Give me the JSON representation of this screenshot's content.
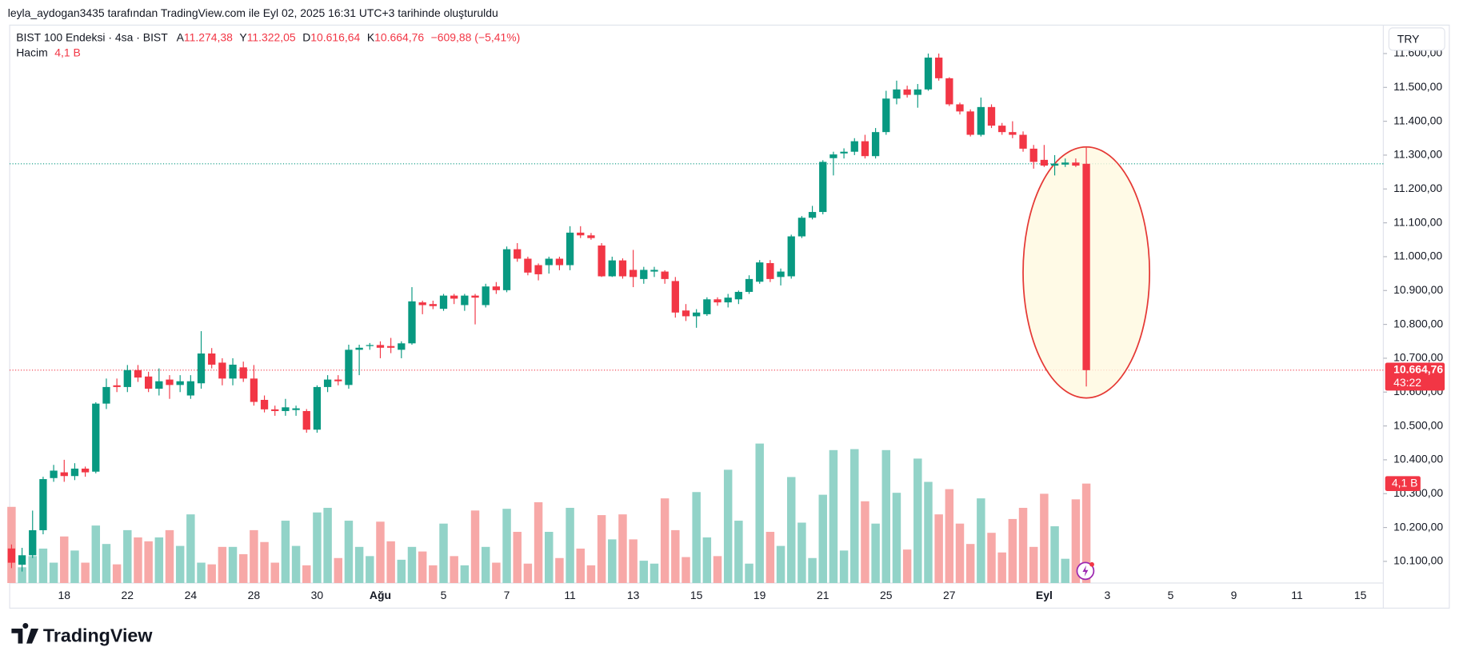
{
  "caption": "leyla_aydogan3435 tarafından TradingView.com ile Eyl 02, 2025 16:31 UTC+3 tarihinde oluşturuldu",
  "brand": "TradingView",
  "chart_data": {
    "type": "candlestick",
    "legend": {
      "symbol": "BIST 100 Endeksi · 4sa · BIST",
      "fields": [
        [
          "A",
          "11.274,38"
        ],
        [
          "Y",
          "11.322,05"
        ],
        [
          "D",
          "10.616,64"
        ],
        [
          "K",
          "10.664,76"
        ]
      ],
      "change": "−609,88 (−5,41%)",
      "volume_name": "Hacim",
      "volume": "4,1 B"
    },
    "currency": "TRY",
    "countdown": "43:22",
    "up_color": "#089981",
    "down_color": "#f23645",
    "volume_up_color": "#92d3c8",
    "volume_down_color": "#f7a8a7",
    "ylim": [
      10036,
      11684
    ],
    "yticks": [
      {
        "value": 10100,
        "label": "10.100,00"
      },
      {
        "value": 10200,
        "label": "10.200,00"
      },
      {
        "value": 10300,
        "label": "10.300,00"
      },
      {
        "value": 10400,
        "label": "10.400,00"
      },
      {
        "value": 10500,
        "label": "10.500,00"
      },
      {
        "value": 10600,
        "label": "10.600,00"
      },
      {
        "value": 10700,
        "label": "10.700,00"
      },
      {
        "value": 10800,
        "label": "10.800,00"
      },
      {
        "value": 10900,
        "label": "10.900,00"
      },
      {
        "value": 11000,
        "label": "11.000,00"
      },
      {
        "value": 11100,
        "label": "11.100,00"
      },
      {
        "value": 11200,
        "label": "11.200,00"
      },
      {
        "value": 11300,
        "label": "11.300,00"
      },
      {
        "value": 11400,
        "label": "11.400,00"
      },
      {
        "value": 11500,
        "label": "11.500,00"
      },
      {
        "value": 11600,
        "label": "11.600,00"
      }
    ],
    "grid": false,
    "categories": [
      null,
      null,
      null,
      null,
      null,
      "18",
      null,
      null,
      null,
      null,
      null,
      "22",
      null,
      null,
      null,
      null,
      null,
      "24",
      null,
      null,
      null,
      null,
      null,
      "28",
      null,
      null,
      null,
      null,
      null,
      "30",
      null,
      null,
      null,
      null,
      null,
      "Ağu",
      null,
      null,
      null,
      null,
      null,
      "5",
      null,
      null,
      null,
      null,
      null,
      "7",
      null,
      null,
      null,
      null,
      null,
      "11",
      null,
      null,
      null,
      null,
      null,
      "13",
      null,
      null,
      null,
      null,
      null,
      "15",
      null,
      null,
      null,
      null,
      null,
      "19",
      null,
      null,
      null,
      null,
      null,
      "21",
      null,
      null,
      null,
      null,
      null,
      "25",
      null,
      null,
      null,
      null,
      null,
      "27",
      null,
      null,
      null,
      null,
      null,
      null,
      null,
      null,
      "Eyl",
      null,
      null,
      null,
      null,
      null,
      "3",
      null,
      null,
      null,
      null,
      null,
      "5",
      null,
      null,
      null,
      null,
      null,
      "9",
      null,
      null,
      null,
      null,
      null,
      "11",
      null,
      null,
      null,
      null,
      null,
      "15",
      null,
      null
    ],
    "open": [
      10138,
      10090,
      10118,
      10192,
      10346,
      10363,
      10352,
      10374,
      10365,
      10566,
      10620,
      10615,
      10665,
      10646,
      10610,
      10637,
      10621,
      10590,
      10626,
      10714,
      10687,
      10640,
      10673,
      10640,
      10577,
      10549,
      10544,
      10547,
      10544,
      10489,
      10615,
      10637,
      10621,
      10725,
      10736,
      10739,
      10736,
      10725,
      10744,
      10865,
      10860,
      10846,
      10885,
      10857,
      10885,
      10857,
      10912,
      10901,
      11022,
      10994,
      10975,
      10975,
      10994,
      10975,
      11071,
      11063,
      11033,
      10942,
      10989,
      10961,
      10934,
      10956,
      10956,
      10928,
      10841,
      10824,
      10830,
      10874,
      10865,
      10874,
      10896,
      10926,
      10981,
      10940,
      10942,
      11060,
      11115,
      11132,
      11291,
      11305,
      11310,
      11341,
      11297,
      11368,
      11467,
      11494,
      11478,
      11494,
      11588,
      11527,
      11450,
      11429,
      11360,
      11442,
      11387,
      11368,
      11360,
      11319,
      11286,
      11269,
      11272,
      11278,
      11274.38,
      null,
      null,
      null,
      null,
      null,
      null,
      null,
      null,
      null,
      null,
      null,
      null,
      null,
      null,
      null,
      null,
      null,
      null,
      null,
      null,
      null,
      null,
      null,
      null,
      null,
      null,
      null,
      null
    ],
    "high": [
      10150,
      10140,
      10250,
      10350,
      10385,
      10400,
      10390,
      10380,
      10570,
      10640,
      10640,
      10680,
      10680,
      10660,
      10670,
      10650,
      10650,
      10650,
      10780,
      10730,
      10700,
      10700,
      10690,
      10680,
      10590,
      10560,
      10580,
      10560,
      10550,
      10620,
      10650,
      10650,
      10740,
      10740,
      10745,
      10750,
      10760,
      10750,
      10910,
      10870,
      10870,
      10890,
      10890,
      10890,
      10890,
      10920,
      10925,
      11030,
      11040,
      11000,
      10980,
      11000,
      11000,
      11090,
      11090,
      11070,
      11040,
      11000,
      10995,
      11020,
      10970,
      10970,
      10960,
      10940,
      10860,
      10845,
      10880,
      10880,
      10890,
      10900,
      10945,
      10990,
      10990,
      10965,
      11065,
      11120,
      11150,
      11285,
      11310,
      11320,
      11350,
      11360,
      11380,
      11490,
      11520,
      11505,
      11510,
      11600,
      11600,
      11530,
      11455,
      11435,
      11470,
      11450,
      11395,
      11400,
      11370,
      11330,
      11330,
      11300,
      11290,
      11290,
      11322.05,
      null,
      null,
      null,
      null,
      null,
      null,
      null,
      null,
      null,
      null,
      null,
      null,
      null,
      null,
      null,
      null,
      null,
      null,
      null,
      null,
      null,
      null,
      null,
      null,
      null,
      null,
      null,
      null
    ],
    "low": [
      10080,
      10070,
      10110,
      10180,
      10335,
      10335,
      10340,
      10350,
      10360,
      10550,
      10600,
      10600,
      10630,
      10600,
      10590,
      10580,
      10600,
      10580,
      10610,
      10670,
      10620,
      10620,
      10630,
      10560,
      10540,
      10530,
      10530,
      10530,
      10480,
      10480,
      10600,
      10620,
      10610,
      10650,
      10725,
      10700,
      10715,
      10700,
      10740,
      10830,
      10845,
      10840,
      10860,
      10840,
      10800,
      10850,
      10890,
      10895,
      10985,
      10945,
      10930,
      10950,
      10960,
      10960,
      11055,
      11050,
      10940,
      10940,
      10935,
      10910,
      10920,
      10940,
      10920,
      10820,
      10810,
      10790,
      10825,
      10855,
      10850,
      10860,
      10890,
      10920,
      10925,
      10915,
      10935,
      11055,
      11110,
      11125,
      11240,
      11290,
      11300,
      11290,
      11290,
      11360,
      11450,
      11470,
      11440,
      11490,
      11520,
      11445,
      11420,
      11355,
      11355,
      11380,
      11360,
      11350,
      11310,
      11260,
      11265,
      11240,
      11265,
      11265,
      10616.64,
      null,
      null,
      null,
      null,
      null,
      null,
      null,
      null,
      null,
      null,
      null,
      null,
      null,
      null,
      null,
      null,
      null,
      null,
      null,
      null,
      null,
      null,
      null,
      null,
      null,
      null,
      null,
      null
    ],
    "close": [
      10096,
      10118,
      10192,
      10343,
      10368,
      10352,
      10374,
      10363,
      10566,
      10615,
      10615,
      10665,
      10643,
      10610,
      10632,
      10621,
      10632,
      10632,
      10714,
      10681,
      10640,
      10681,
      10640,
      10571,
      10549,
      10544,
      10555,
      10552,
      10489,
      10615,
      10637,
      10632,
      10725,
      10731,
      10739,
      10731,
      10731,
      10744,
      10868,
      10857,
      10854,
      10885,
      10876,
      10885,
      10879,
      10912,
      10901,
      11022,
      10994,
      10953,
      10948,
      10994,
      10975,
      11071,
      11063,
      11055,
      10942,
      10989,
      10942,
      10940,
      10961,
      10961,
      10934,
      10835,
      10824,
      10835,
      10874,
      10865,
      10879,
      10896,
      10934,
      10983,
      10934,
      10956,
      11060,
      11115,
      11132,
      11280,
      11302,
      11310,
      11341,
      11297,
      11368,
      11467,
      11494,
      11478,
      11494,
      11588,
      11527,
      11450,
      11429,
      11360,
      11442,
      11387,
      11368,
      11360,
      11319,
      11280,
      11269,
      11275,
      11278,
      11269,
      10664.76,
      null,
      null,
      null,
      null,
      null,
      null,
      null,
      null,
      null,
      null,
      null,
      null,
      null,
      null,
      null,
      null,
      null,
      null,
      null,
      null,
      null,
      null,
      null,
      null,
      null,
      null,
      null,
      null
    ],
    "volume": [
      3.14,
      0.65,
      1.11,
      1.42,
      0.84,
      1.92,
      1.34,
      0.84,
      2.37,
      1.61,
      0.77,
      2.18,
      1.88,
      1.72,
      1.88,
      2.18,
      1.53,
      2.83,
      0.84,
      0.77,
      1.49,
      1.49,
      1.19,
      2.18,
      1.69,
      0.84,
      2.57,
      1.53,
      0.73,
      2.91,
      3.1,
      1.03,
      2.57,
      1.49,
      1.11,
      2.53,
      1.72,
      0.96,
      1.49,
      1.3,
      0.73,
      2.45,
      1.11,
      0.73,
      2.99,
      1.49,
      0.84,
      3.06,
      2.11,
      0.8,
      3.33,
      2.11,
      1.03,
      3.1,
      1.42,
      0.73,
      2.8,
      1.8,
      2.83,
      1.8,
      0.92,
      0.8,
      3.49,
      2.18,
      1.07,
      3.75,
      1.88,
      1.11,
      4.67,
      2.57,
      0.8,
      5.75,
      2.11,
      1.53,
      4.37,
      2.49,
      1.03,
      3.64,
      5.48,
      1.34,
      5.52,
      3.37,
      2.45,
      5.48,
      3.72,
      1.38,
      5.13,
      4.17,
      2.83,
      3.87,
      2.45,
      1.61,
      3.49,
      2.07,
      1.26,
      2.64,
      3.1,
      1.49,
      3.68,
      2.34,
      1.0,
      3.45,
      4.1,
      null,
      null,
      null,
      null,
      null,
      null,
      null,
      null,
      null,
      null,
      null,
      null,
      null,
      null,
      null,
      null,
      null,
      null,
      null,
      null,
      null,
      null,
      null,
      null,
      null,
      null,
      null,
      null
    ]
  }
}
